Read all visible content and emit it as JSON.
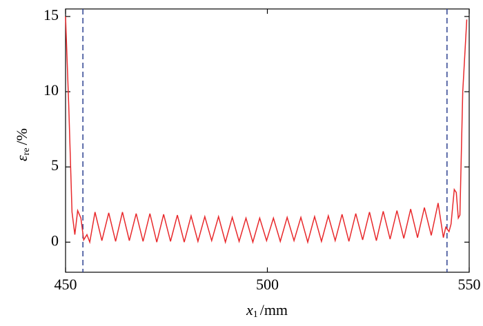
{
  "chart_data": {
    "type": "line",
    "ylabel": "ε",
    "ylabel_sub": "re",
    "ylabel_unit": "/%",
    "xlabel": "x",
    "xlabel_sub": "1",
    "xlabel_unit": "/mm",
    "xlim": [
      450,
      550
    ],
    "xticks": [
      450,
      500,
      550
    ],
    "ylim": [
      -2,
      15.5
    ],
    "yticks": [
      0,
      5,
      10,
      15
    ],
    "grid": false,
    "vlines": [
      454.3,
      544.5
    ],
    "vline_color": "#2b3f8f",
    "series": [
      {
        "name": "ε_re",
        "color": "#e8282b",
        "x": [
          450,
          450.8,
          451.6,
          452.3,
          453,
          453.8,
          454.5,
          455.3,
          456,
          457.3,
          459,
          460.7,
          462.4,
          464.1,
          465.8,
          467.5,
          469.2,
          470.9,
          472.6,
          474.3,
          476,
          477.7,
          479.4,
          481.1,
          482.8,
          484.5,
          486.2,
          487.9,
          489.6,
          491.3,
          493,
          494.7,
          496.4,
          498.1,
          499.8,
          501.5,
          503.2,
          504.9,
          506.6,
          508.3,
          510,
          511.7,
          513.4,
          515.1,
          516.8,
          518.5,
          520.2,
          521.9,
          523.6,
          525.3,
          527,
          528.7,
          530.4,
          532.1,
          533.8,
          535.5,
          537.2,
          538.9,
          540.6,
          542.3,
          543.6,
          544.2,
          545,
          545.5,
          546.3,
          546.8,
          547.3,
          547.7,
          548.4,
          549.4
        ],
        "values": [
          15,
          9,
          2,
          0.5,
          2.1,
          1.6,
          0.15,
          0.5,
          0,
          2.0,
          0.1,
          1.95,
          0.05,
          2.0,
          0.1,
          1.9,
          0.05,
          1.9,
          0.0,
          1.85,
          0.05,
          1.8,
          0.0,
          1.75,
          0.05,
          1.7,
          0.1,
          1.7,
          0.0,
          1.65,
          0.05,
          1.6,
          0.0,
          1.6,
          0.1,
          1.6,
          0.05,
          1.65,
          0.1,
          1.65,
          0.0,
          1.7,
          0.05,
          1.75,
          0.1,
          1.85,
          0.05,
          1.9,
          0.15,
          2.0,
          0.1,
          2.05,
          0.2,
          2.1,
          0.25,
          2.2,
          0.3,
          2.3,
          0.45,
          2.6,
          0.3,
          1.0,
          0.7,
          1.2,
          3.5,
          3.3,
          1.6,
          1.8,
          10,
          14.8
        ]
      }
    ]
  }
}
